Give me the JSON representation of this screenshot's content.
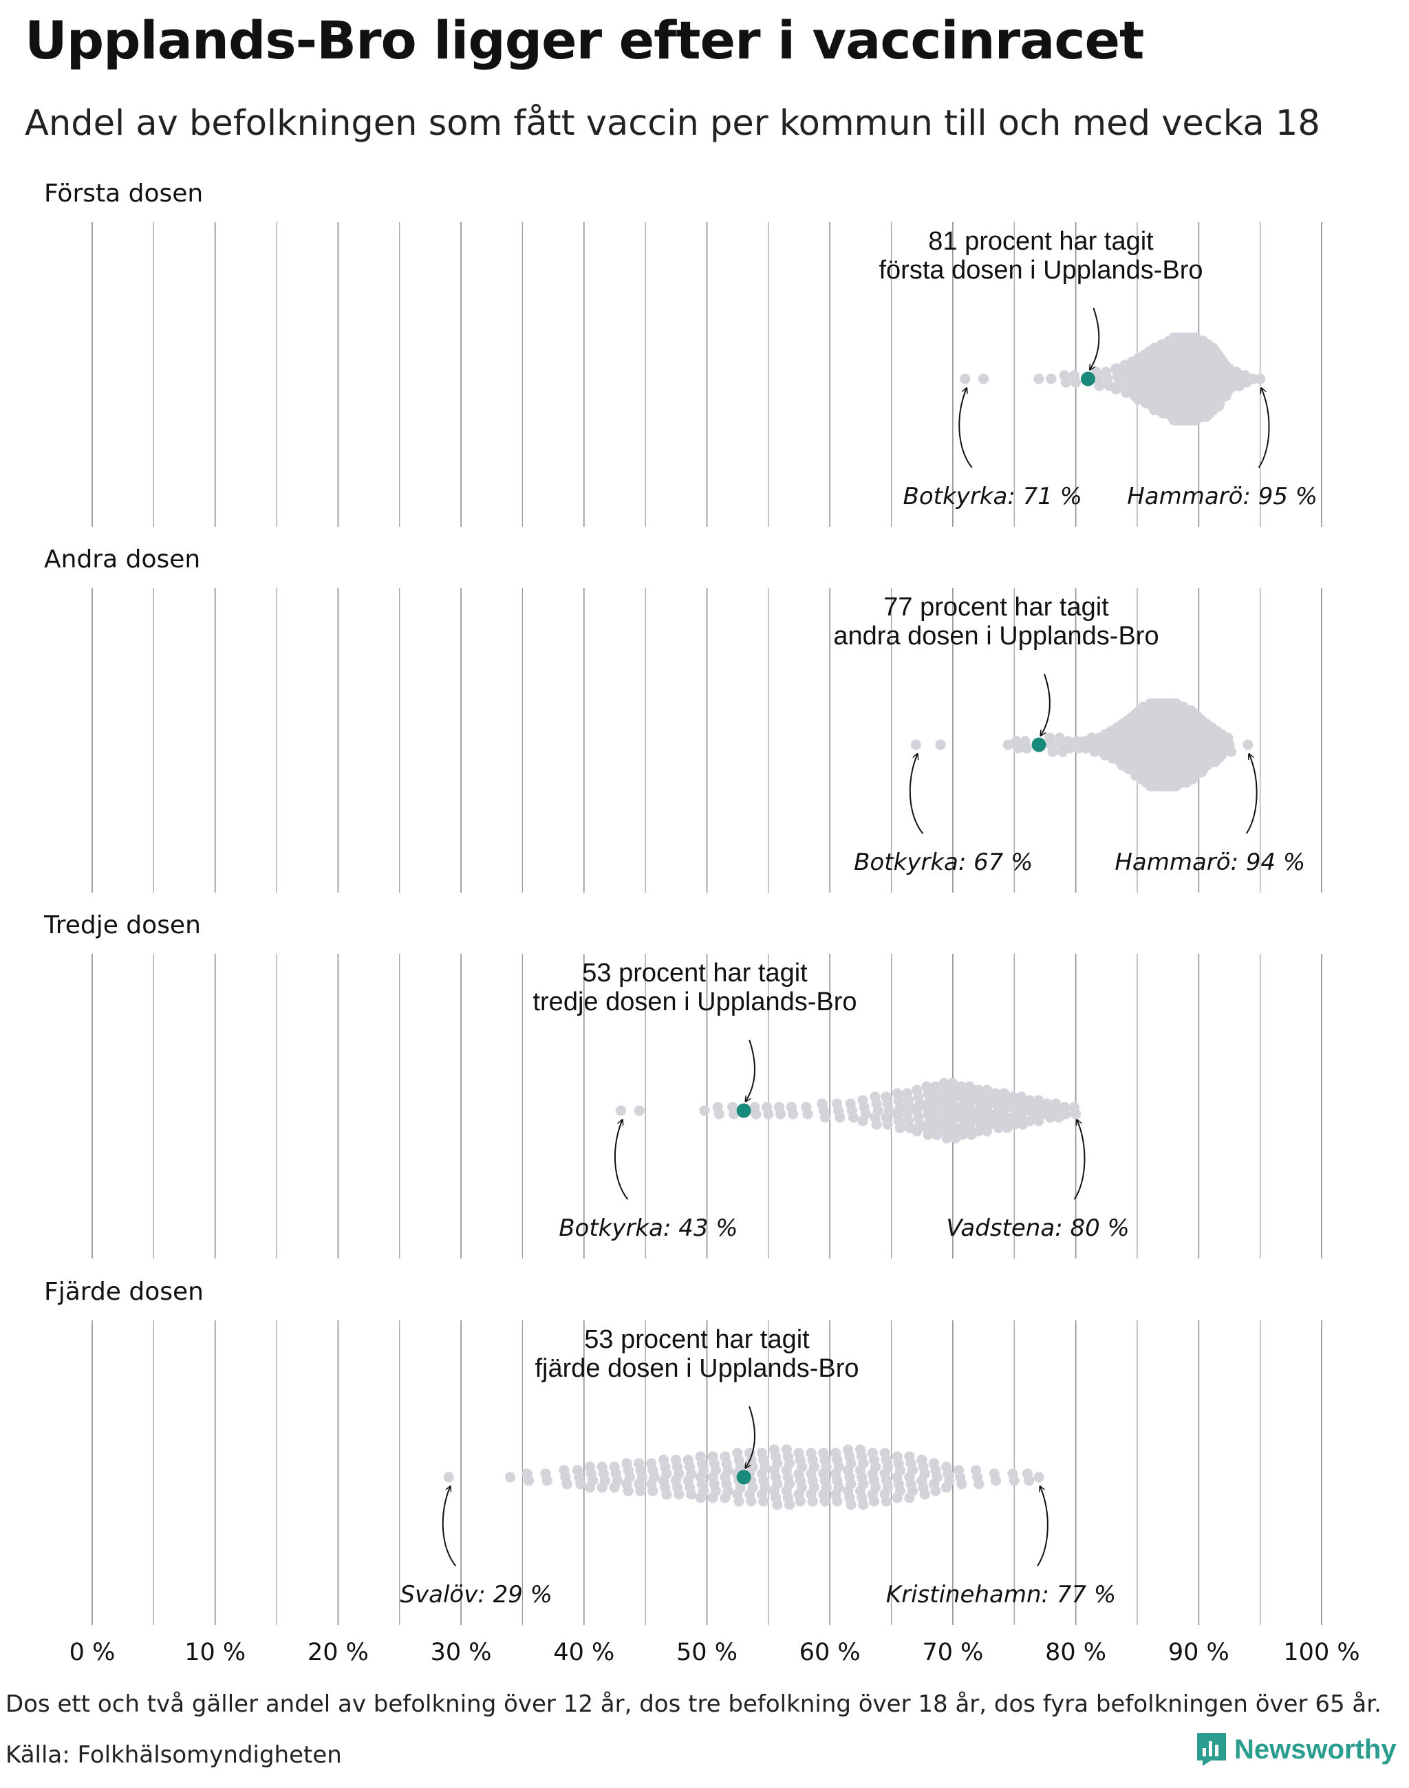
{
  "title": "Upplands-Bro ligger efter i vaccinracet",
  "subtitle": "Andel av befolkningen som fått vaccin per kommun till och med vecka 18",
  "footnote": "Dos ett och två gäller andel av befolkning över 12 år, dos tre befolkning över 18 år, dos fyra befolkningen över 65 år.",
  "source": "Källa: Folkhälsomyndigheten",
  "brand": "Newsworthy",
  "colors": {
    "highlight": "#1a8a7a",
    "dots": "#d3d3da",
    "grid": "#9a9a9a",
    "brand": "#2a9d8f"
  },
  "chart_data": {
    "type": "scatter",
    "kind": "beeswarm",
    "x_unit": "%",
    "xlim": [
      0,
      100
    ],
    "x_ticks": [
      0,
      10,
      20,
      30,
      40,
      50,
      60,
      70,
      80,
      90,
      100
    ],
    "x_tick_labels": [
      "0 %",
      "10 %",
      "20 %",
      "30 %",
      "40 %",
      "50 %",
      "60 %",
      "70 %",
      "80 %",
      "90 %",
      "100 %"
    ],
    "grid": true,
    "panels": [
      {
        "name": "Första dosen",
        "highlight": {
          "label": "Upplands-Bro",
          "value": 81
        },
        "callout": [
          "81 procent har tagit",
          "första dosen i Upplands-Bro"
        ],
        "min": {
          "label": "Botkyrka: 71 %",
          "value": 71
        },
        "max": {
          "label": "Hammarö: 95 %",
          "value": 95
        },
        "values": [
          71,
          72.5,
          77,
          78,
          79.2,
          80,
          81.8,
          82.6,
          83.4,
          84.1,
          84.7,
          85.2,
          85.7,
          86.1,
          86.5,
          86.8,
          87.1,
          87.4,
          87.7,
          87.9,
          88.1,
          88.3,
          88.5,
          88.7,
          88.9,
          89.1,
          89.3,
          89.5,
          89.7,
          89.9,
          90.1,
          90.3,
          90.5,
          90.7,
          90.9,
          91.1,
          91.3,
          91.5,
          91.7,
          91.9,
          92.1,
          92.3,
          92.6,
          92.9,
          93.2,
          93.5,
          93.9,
          94.4,
          95
        ],
        "counts": [
          1,
          1,
          1,
          1,
          2,
          2,
          3,
          3,
          4,
          5,
          6,
          7,
          8,
          9,
          10,
          10,
          11,
          11,
          12,
          12,
          13,
          13,
          13,
          13,
          13,
          13,
          13,
          13,
          13,
          13,
          12,
          12,
          12,
          11,
          11,
          10,
          10,
          9,
          8,
          7,
          6,
          5,
          4,
          3,
          3,
          2,
          2,
          1,
          1
        ]
      },
      {
        "name": "Andra dosen",
        "highlight": {
          "label": "Upplands-Bro",
          "value": 77
        },
        "callout": [
          "77 procent har tagit",
          "andra dosen i Upplands-Bro"
        ],
        "min": {
          "label": "Botkyrka: 67 %",
          "value": 67
        },
        "max": {
          "label": "Hammarö: 94 %",
          "value": 94
        },
        "values": [
          67,
          69,
          74.5,
          75.3,
          76,
          78,
          78.8,
          79.5,
          80.2,
          80.8,
          81.4,
          82,
          82.5,
          83,
          83.5,
          83.9,
          84.3,
          84.7,
          85,
          85.3,
          85.6,
          85.9,
          86.2,
          86.5,
          86.8,
          87.1,
          87.4,
          87.7,
          88,
          88.3,
          88.6,
          88.9,
          89.2,
          89.5,
          89.8,
          90.1,
          90.4,
          90.8,
          91.2,
          91.6,
          92,
          92.5,
          94
        ],
        "counts": [
          1,
          1,
          1,
          2,
          2,
          3,
          3,
          2,
          2,
          2,
          3,
          3,
          4,
          5,
          6,
          7,
          8,
          9,
          10,
          11,
          12,
          12,
          13,
          13,
          13,
          13,
          13,
          13,
          13,
          13,
          12,
          12,
          11,
          11,
          10,
          9,
          8,
          7,
          6,
          5,
          4,
          3,
          1
        ]
      },
      {
        "name": "Tredje dosen",
        "highlight": {
          "label": "Upplands-Bro",
          "value": 53
        },
        "callout": [
          "53 procent har tagit",
          "tredje dosen i Upplands-Bro"
        ],
        "min": {
          "label": "Botkyrka: 43 %",
          "value": 43
        },
        "max": {
          "label": "Vadstena: 80 %",
          "value": 80
        },
        "values": [
          43,
          44.5,
          49.8,
          51,
          52.2,
          54,
          55,
          56,
          57,
          58.2,
          59.5,
          60.7,
          61.8,
          62.8,
          63.8,
          64.7,
          65.6,
          66.4,
          67.2,
          68,
          68.7,
          69.4,
          70.1,
          70.8,
          71.5,
          72.2,
          72.9,
          73.6,
          74.3,
          75,
          75.7,
          76.4,
          77.1,
          77.8,
          78.5,
          79.2,
          80
        ],
        "counts": [
          1,
          1,
          1,
          2,
          2,
          2,
          2,
          2,
          2,
          2,
          3,
          3,
          3,
          4,
          5,
          5,
          6,
          6,
          7,
          8,
          8,
          9,
          9,
          8,
          8,
          7,
          7,
          6,
          6,
          5,
          5,
          4,
          4,
          3,
          3,
          2,
          2
        ]
      },
      {
        "name": "Fjärde dosen",
        "highlight": {
          "label": "Upplands-Bro",
          "value": 53
        },
        "callout": [
          "53 procent har tagit",
          "fjärde dosen i Upplands-Bro"
        ],
        "min": {
          "label": "Svalöv: 29 %",
          "value": 29
        },
        "max": {
          "label": "Kristinehamn: 77 %",
          "value": 77
        },
        "values": [
          29,
          34,
          35.5,
          37,
          38.5,
          39.6,
          40.6,
          41.6,
          42.6,
          43.6,
          44.6,
          45.6,
          46.6,
          47.6,
          48.6,
          49.6,
          50.6,
          51.6,
          52.6,
          53.6,
          54.6,
          55.6,
          56.6,
          57.6,
          58.6,
          59.6,
          60.6,
          61.6,
          62.6,
          63.6,
          64.6,
          65.6,
          66.6,
          67.6,
          68.6,
          69.6,
          70.6,
          72,
          73.5,
          75,
          76.2,
          77
        ],
        "counts": [
          1,
          1,
          2,
          2,
          3,
          3,
          4,
          4,
          4,
          5,
          5,
          5,
          6,
          6,
          6,
          7,
          7,
          7,
          8,
          8,
          8,
          9,
          9,
          8,
          8,
          8,
          8,
          9,
          9,
          8,
          8,
          7,
          7,
          6,
          5,
          4,
          3,
          3,
          2,
          2,
          2,
          1
        ]
      }
    ]
  }
}
